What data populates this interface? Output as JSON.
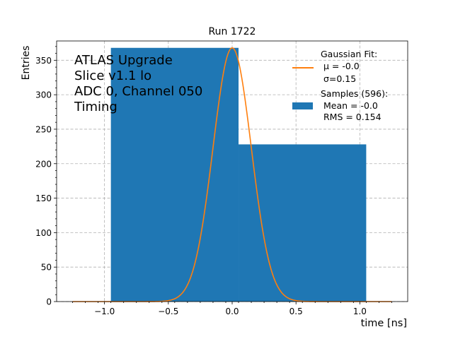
{
  "chart_data": {
    "type": "bar",
    "title": "Run 1722",
    "xlabel": "time [ns]",
    "ylabel": "Entries",
    "xlim": [
      -1.375,
      1.375
    ],
    "ylim": [
      0,
      378
    ],
    "xticks": [
      -1.0,
      -0.5,
      0.0,
      0.5,
      1.0
    ],
    "xtick_labels": [
      "−1.0",
      "−0.5",
      "0.0",
      "0.5",
      "1.0"
    ],
    "yticks": [
      0,
      50,
      100,
      150,
      200,
      250,
      300,
      350
    ],
    "ytick_labels": [
      "0",
      "50",
      "100",
      "150",
      "200",
      "250",
      "300",
      "350"
    ],
    "grid": true,
    "histogram": {
      "name": "Samples (596):",
      "color": "#1f77b4",
      "bins": [
        {
          "x0": -0.95,
          "x1": 0.05,
          "value": 368
        },
        {
          "x0": 0.05,
          "x1": 1.05,
          "value": 228
        }
      ]
    },
    "fit": {
      "name": "Gaussian Fit:",
      "color": "#ff7f0e",
      "mu": 0.0,
      "sigma": 0.15,
      "amplitude": 368,
      "x_range": [
        -1.25,
        1.25
      ]
    },
    "annotation_lines": [
      "ATLAS Upgrade",
      "Slice v1.1 lo",
      "ADC 0, Channel 050",
      "Timing"
    ],
    "legend": {
      "position": "top-right",
      "fit_lines": [
        "Gaussian Fit:",
        " μ = -0.0",
        " σ=0.15"
      ],
      "hist_lines": [
        "Samples (596):",
        " Mean = -0.0",
        " RMS = 0.154"
      ]
    }
  }
}
